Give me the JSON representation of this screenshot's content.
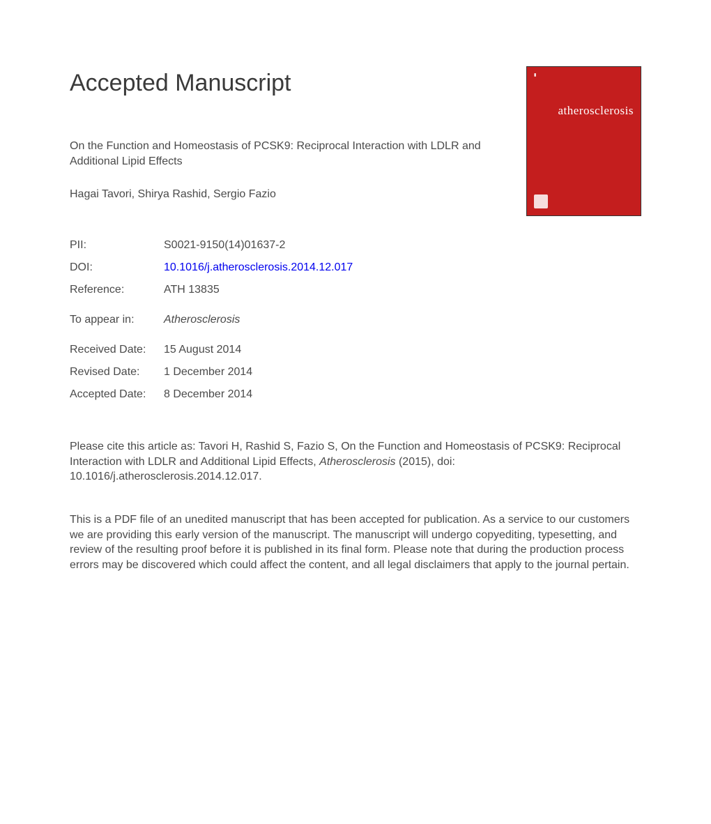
{
  "heading": "Accepted Manuscript",
  "article_title": "On the Function and Homeostasis of PCSK9: Reciprocal Interaction with LDLR and Additional Lipid Effects",
  "authors": "Hagai Tavori, Shirya Rashid, Sergio Fazio",
  "meta": {
    "pii_label": "PII:",
    "pii_value": "S0021-9150(14)01637-2",
    "doi_label": "DOI:",
    "doi_value": "10.1016/j.atherosclerosis.2014.12.017",
    "reference_label": "Reference:",
    "reference_value": "ATH 13835",
    "to_appear_label": "To appear in:",
    "to_appear_value": "Atherosclerosis",
    "received_label": "Received Date:",
    "received_value": "15 August 2014",
    "revised_label": "Revised Date:",
    "revised_value": "1 December 2014",
    "accepted_label": "Accepted Date:",
    "accepted_value": "8 December 2014"
  },
  "citation": {
    "prefix": "Please cite this article as: Tavori H, Rashid S, Fazio S, On the Function and Homeostasis of PCSK9: Reciprocal Interaction with LDLR and Additional Lipid Effects, ",
    "journal": "Atherosclerosis",
    "suffix": " (2015), doi: 10.1016/j.atherosclerosis.2014.12.017."
  },
  "disclaimer": "This is a PDF file of an unedited manuscript that has been accepted for publication. As a service to our customers we are providing this early version of the manuscript. The manuscript will undergo copyediting, typesetting, and review of the resulting proof before it is published in its final form. Please note that during the production process errors may be discovered which could affect the content, and all legal disclaimers that apply to the journal pertain.",
  "cover": {
    "background_color": "#c41e1e",
    "journal_name": "atherosclerosis"
  }
}
